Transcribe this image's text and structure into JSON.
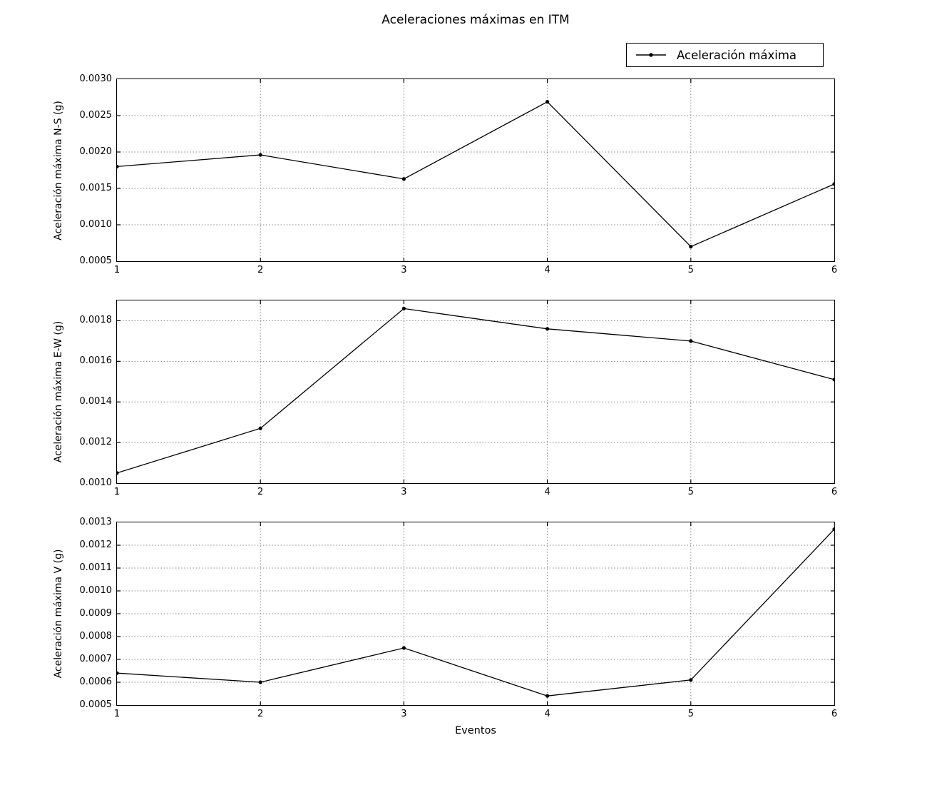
{
  "figure": {
    "title": "Aceleraciones máximas en ITM",
    "xlabel": "Eventos",
    "legend": {
      "label": "Aceleración máxima",
      "marker": "line-with-dot"
    },
    "colors": {
      "line": "#000000",
      "grid": "#888888",
      "text": "#000000",
      "background": "#ffffff"
    }
  },
  "chart_data": [
    {
      "type": "line",
      "series": [
        {
          "name": "Aceleración máxima",
          "values": [
            0.0018,
            0.00196,
            0.00163,
            0.00269,
            0.0007,
            0.00156
          ]
        }
      ],
      "x": [
        1,
        2,
        3,
        4,
        5,
        6
      ],
      "xtick_labels": [
        "1",
        "2",
        "3",
        "4",
        "5",
        "6"
      ],
      "xlabel": "",
      "ylabel": "Aceleración máxima N-S (g)",
      "ylim": [
        0.0005,
        0.003
      ],
      "yticks": [
        0.0005,
        0.001,
        0.0015,
        0.002,
        0.0025,
        0.003
      ],
      "ytick_labels": [
        "0.0005",
        "0.0010",
        "0.0015",
        "0.0020",
        "0.0025",
        "0.0030"
      ],
      "grid": true,
      "marker": "dot",
      "legend_position": "figure-upper-right"
    },
    {
      "type": "line",
      "series": [
        {
          "name": "Aceleración máxima",
          "values": [
            0.00105,
            0.00127,
            0.00186,
            0.00176,
            0.0017,
            0.00151
          ]
        }
      ],
      "x": [
        1,
        2,
        3,
        4,
        5,
        6
      ],
      "xtick_labels": [
        "1",
        "2",
        "3",
        "4",
        "5",
        "6"
      ],
      "xlabel": "",
      "ylabel": "Aceleración máxima E-W (g)",
      "ylim": [
        0.001,
        0.0019
      ],
      "yticks": [
        0.001,
        0.0012,
        0.0014,
        0.0016,
        0.0018
      ],
      "ytick_labels": [
        "0.0010",
        "0.0012",
        "0.0014",
        "0.0016",
        "0.0018"
      ],
      "grid": true,
      "marker": "dot",
      "legend_position": "figure-upper-right"
    },
    {
      "type": "line",
      "series": [
        {
          "name": "Aceleración máxima",
          "values": [
            0.00064,
            0.0006,
            0.00075,
            0.00054,
            0.00061,
            0.00127
          ]
        }
      ],
      "x": [
        1,
        2,
        3,
        4,
        5,
        6
      ],
      "xtick_labels": [
        "1",
        "2",
        "3",
        "4",
        "5",
        "6"
      ],
      "xlabel": "Eventos",
      "ylabel": "Aceleración máxima V (g)",
      "ylim": [
        0.0005,
        0.0013
      ],
      "yticks": [
        0.0005,
        0.0006,
        0.0007,
        0.0008,
        0.0009,
        0.001,
        0.0011,
        0.0012,
        0.0013
      ],
      "ytick_labels": [
        "0.0005",
        "0.0006",
        "0.0007",
        "0.0008",
        "0.0009",
        "0.0010",
        "0.0011",
        "0.0012",
        "0.0013"
      ],
      "grid": true,
      "marker": "dot",
      "legend_position": "figure-upper-right"
    }
  ]
}
